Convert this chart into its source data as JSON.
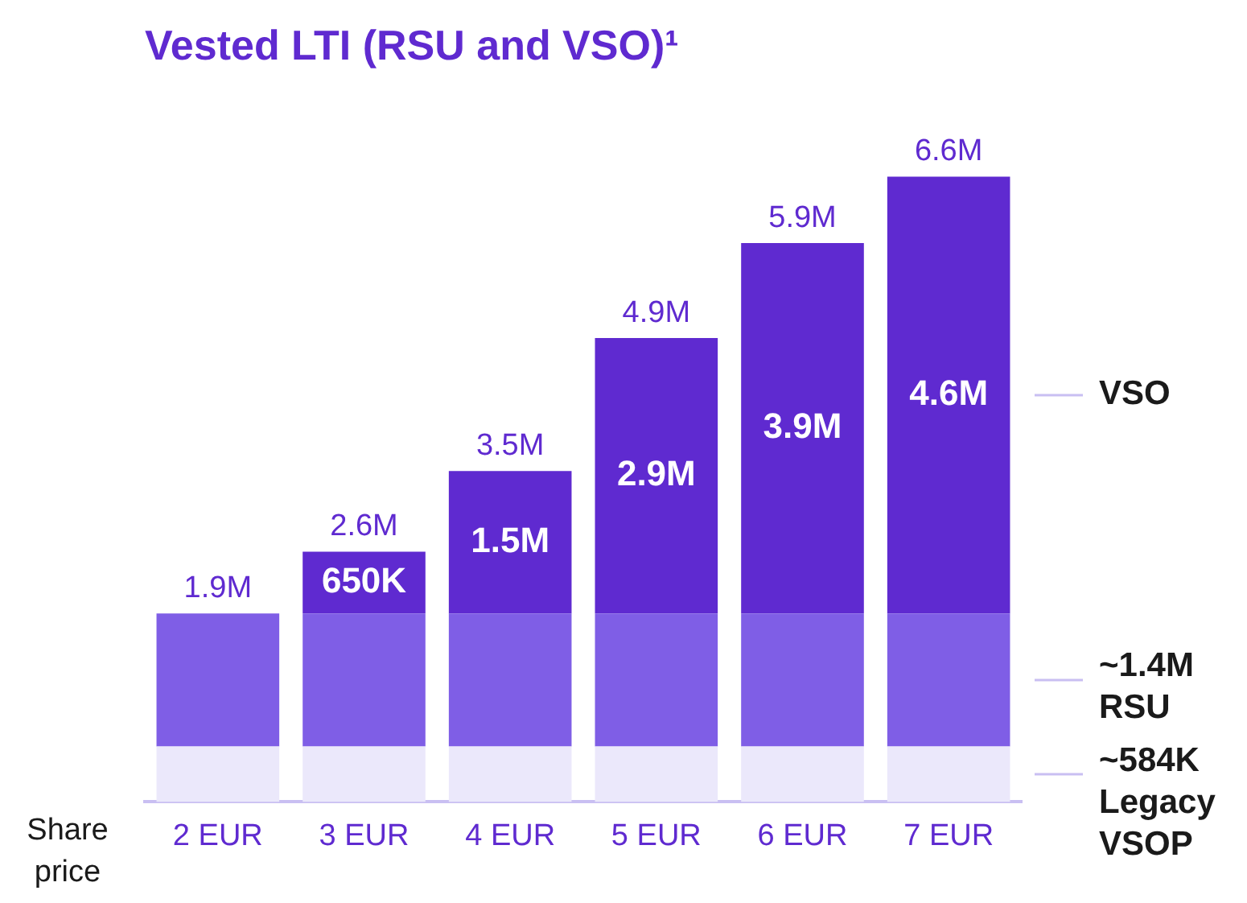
{
  "chart_data": {
    "type": "bar",
    "title": "Vested LTI (RSU and VSO)¹",
    "xlabel": "Share price",
    "stacked": true,
    "categories": [
      "2 EUR",
      "3 EUR",
      "4 EUR",
      "5 EUR",
      "6 EUR",
      "7 EUR"
    ],
    "series": [
      {
        "name": "~584K Legacy VSOP",
        "color": "#ebe8fb",
        "values": [
          584000,
          584000,
          584000,
          584000,
          584000,
          584000
        ]
      },
      {
        "name": "~1.4M RSU",
        "color": "#7f5ee6",
        "values": [
          1400000,
          1400000,
          1400000,
          1400000,
          1400000,
          1400000
        ]
      },
      {
        "name": "VSO",
        "color": "#5f2ad0",
        "values": [
          null,
          650000,
          1500000,
          2900000,
          3900000,
          4600000
        ],
        "value_labels": [
          null,
          "650K",
          "1.5M",
          "2.9M",
          "3.9M",
          "4.6M"
        ]
      }
    ],
    "totals": [
      "1.9M",
      "2.6M",
      "3.5M",
      "4.9M",
      "5.9M",
      "6.6M"
    ],
    "legend": false,
    "grid": false
  }
}
